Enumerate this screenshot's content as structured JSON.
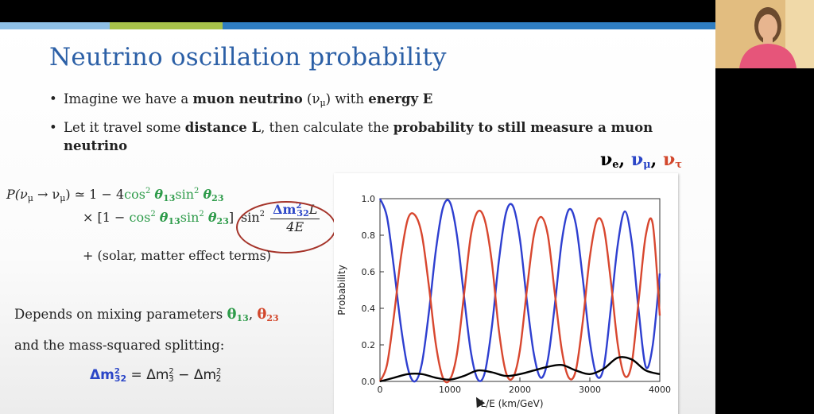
{
  "slide": {
    "title": "Neutrino oscillation probability",
    "bullet1": {
      "pre": "Imagine we have a ",
      "b1": "muon neutrino",
      "mid": " (ν",
      "sub": "μ",
      "post": ") with ",
      "b2": "energy E"
    },
    "bullet2": {
      "pre": "Let it travel some ",
      "b1": "distance L",
      "mid": ", then calculate the ",
      "b2": "probability to still measure a muon neutrino"
    },
    "equation": {
      "line1_lhs": "P(ν",
      "line1_sub1": "μ",
      "line1_arrow": " → ν",
      "line1_sub2": "μ",
      "line1_rhs": ") ≃ 1 − 4",
      "cos": "cos",
      "sup2": "2",
      "theta13": "θ",
      "sub13": "13",
      "sin": "sin",
      "theta23": "θ",
      "sub23": "23",
      "line2_pre": "× [1 − ",
      "line2_close": "]",
      "frac_num": "Δm",
      "frac_sup": "2",
      "frac_sub": "32",
      "frac_L": "L",
      "frac_den": "4E",
      "line3": "+ (solar, matter effect terms)"
    },
    "depends_line1": "Depends on mixing parameters ",
    "theta13_label": "θ",
    "theta13_sub": "13",
    "comma": ", ",
    "theta23_label": "θ",
    "theta23_sub": "23",
    "depends_line2": "and the mass-squared splitting:",
    "splitting": {
      "lhs": "Δm",
      "lhs_sub": "32",
      "sup": "2",
      "eq": " = Δm",
      "m3_sub": "3",
      "minus": " − Δm",
      "m2_sub": "2"
    },
    "nu_legend": {
      "nu_e": "ν",
      "e": "e",
      "nu_mu": "ν",
      "mu": "μ",
      "nu_tau": "ν",
      "tau": "τ",
      "sep": ", "
    }
  },
  "chart_data": {
    "type": "line",
    "xlabel": "L/E (km/GeV)",
    "ylabel": "Probability",
    "xlim": [
      0,
      4000
    ],
    "ylim": [
      0,
      1.0
    ],
    "xticks": [
      "0",
      "1000",
      "2000",
      "3000",
      "4000"
    ],
    "yticks": [
      "0.0",
      "0.2",
      "0.4",
      "0.6",
      "0.8",
      "1.0"
    ],
    "grid": false,
    "series": [
      {
        "key": "nu_mu",
        "color": "#2e3fd0",
        "x": [
          0,
          100,
          200,
          300,
          400,
          500,
          600,
          700,
          800,
          900,
          1000,
          1100,
          1200,
          1300,
          1400,
          1500,
          1600,
          1700,
          1800,
          1900,
          2000,
          2100,
          2200,
          2300,
          2400,
          2500,
          2600,
          2700,
          2800,
          2900,
          3000,
          3100,
          3200,
          3300,
          3400,
          3500,
          3600,
          3700,
          3800,
          3900,
          4000
        ],
        "values": [
          1.0,
          0.9,
          0.62,
          0.3,
          0.07,
          0.0,
          0.1,
          0.38,
          0.72,
          0.95,
          0.98,
          0.8,
          0.47,
          0.16,
          0.01,
          0.05,
          0.3,
          0.66,
          0.92,
          0.96,
          0.78,
          0.44,
          0.15,
          0.02,
          0.12,
          0.42,
          0.77,
          0.94,
          0.86,
          0.56,
          0.22,
          0.03,
          0.08,
          0.4,
          0.75,
          0.93,
          0.76,
          0.38,
          0.08,
          0.2,
          0.59
        ]
      },
      {
        "key": "nu_tau",
        "color": "#d8472f",
        "x": [
          0,
          100,
          200,
          300,
          400,
          500,
          600,
          700,
          800,
          900,
          1000,
          1100,
          1200,
          1300,
          1400,
          1500,
          1600,
          1700,
          1800,
          1900,
          2000,
          2100,
          2200,
          2300,
          2400,
          2500,
          2600,
          2700,
          2800,
          2900,
          3000,
          3100,
          3200,
          3300,
          3400,
          3500,
          3600,
          3700,
          3800,
          3900,
          4000
        ],
        "values": [
          0.0,
          0.09,
          0.36,
          0.68,
          0.89,
          0.91,
          0.8,
          0.52,
          0.2,
          0.02,
          0.01,
          0.15,
          0.47,
          0.8,
          0.93,
          0.88,
          0.65,
          0.28,
          0.05,
          0.02,
          0.17,
          0.5,
          0.8,
          0.9,
          0.8,
          0.48,
          0.17,
          0.02,
          0.06,
          0.33,
          0.68,
          0.88,
          0.84,
          0.55,
          0.2,
          0.03,
          0.1,
          0.45,
          0.8,
          0.86,
          0.36
        ]
      },
      {
        "key": "nu_e",
        "color": "#000000",
        "x": [
          0,
          200,
          400,
          600,
          800,
          1000,
          1200,
          1400,
          1600,
          1800,
          2000,
          2200,
          2400,
          2600,
          2800,
          3000,
          3200,
          3400,
          3600,
          3800,
          4000
        ],
        "values": [
          0.0,
          0.02,
          0.04,
          0.04,
          0.02,
          0.01,
          0.03,
          0.06,
          0.05,
          0.03,
          0.04,
          0.06,
          0.08,
          0.09,
          0.06,
          0.04,
          0.07,
          0.13,
          0.12,
          0.06,
          0.04
        ]
      }
    ]
  }
}
